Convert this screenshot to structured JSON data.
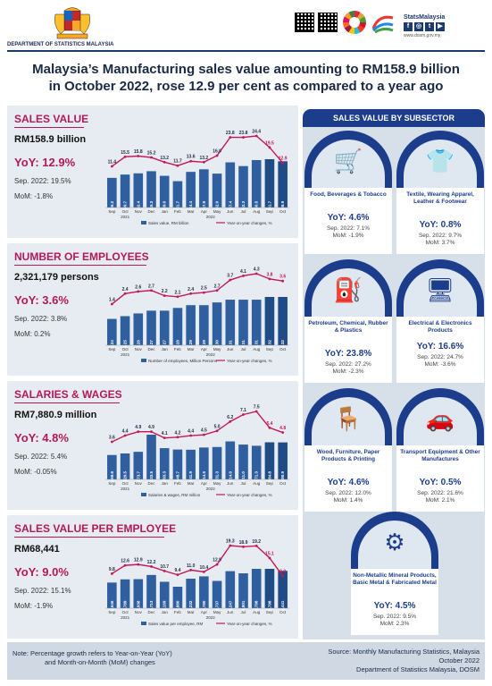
{
  "header": {
    "department": "DEPARTMENT OF STATISTICS MALAYSIA",
    "stats_brand": "StatsMalaysia",
    "stats_url": "www.dosm.gov.my"
  },
  "title": {
    "line1": "Malaysia’s Manufacturing sales value amounting to RM158.9 billion",
    "line2": "in October 2022, rose 12.9 per cent as compared to a year ago"
  },
  "colors": {
    "bar": "#2f5f9e",
    "line": "#c2185b",
    "accent": "#b3185a",
    "navy": "#1c3d8c"
  },
  "months": [
    "Sep",
    "Oct",
    "Nov",
    "Dec",
    "Jan",
    "Feb",
    "Mar",
    "Apr",
    "May",
    "Jun",
    "Jul",
    "Aug",
    "Sep",
    "Oct"
  ],
  "year_labels": [
    "2021",
    "2022"
  ],
  "panels": [
    {
      "title": "SALES VALUE",
      "value": "RM158.9 billion",
      "yoy": "YoY: 12.9%",
      "sep": "Sep. 2022: 19.5%",
      "mom": "MoM: -1.8%",
      "legend_bar": "Sales value, RM billion",
      "legend_line": "Year-on-year changes, %"
    },
    {
      "title": "NUMBER OF EMPLOYEES",
      "value": "2,321,179 persons",
      "yoy": "YoY: 3.6%",
      "sep": "Sep. 2022: 3.8%",
      "mom": "MoM: 0.2%",
      "legend_bar": "Number of employees, Million Persons",
      "legend_line": "Year-on-year changes, %"
    },
    {
      "title": "SALARIES & WAGES",
      "value": "RM7,880.9 million",
      "yoy": "YoY: 4.8%",
      "sep": "Sep. 2022: 5.4%",
      "mom": "MoM: -0.05%",
      "legend_bar": "Salaries & wages, RM million",
      "legend_line": "Year-on-year changes, %"
    },
    {
      "title": "SALES VALUE PER EMPLOYEE",
      "value": "RM68,441",
      "yoy": "YoY: 9.0%",
      "sep": "Sep. 2022: 15.1%",
      "mom": "MoM: -1.9%",
      "legend_bar": "Sales value per employee, RM",
      "legend_line": "Year-on-year changes, %"
    }
  ],
  "chart_data": [
    {
      "type": "bar",
      "title": "SALES VALUE",
      "categories": [
        "Sep",
        "Oct",
        "Nov",
        "Dec",
        "Jan",
        "Feb",
        "Mar",
        "Apr",
        "May",
        "Jun",
        "Jul",
        "Aug",
        "Sep",
        "Oct"
      ],
      "series": [
        {
          "name": "Sales value, RM billion",
          "type": "bar",
          "values": [
            136.2,
            140.7,
            142.4,
            145.3,
            139.0,
            131.7,
            144.4,
            147.9,
            142.0,
            157.4,
            152.3,
            160.5,
            161.7,
            158.9
          ]
        },
        {
          "name": "Year-on-year changes, %",
          "type": "line",
          "values": [
            11.4,
            15.5,
            15.8,
            15.2,
            13.2,
            11.7,
            13.6,
            13.2,
            16.0,
            23.8,
            23.8,
            24.4,
            19.5,
            12.9
          ]
        }
      ],
      "bar_labels": [
        "136.2",
        "140.7",
        "142.4",
        "145.3",
        "139.0",
        "131.7",
        "144.4",
        "147.9",
        "142.0",
        "157.4",
        "152.3",
        "160.5",
        "161.7",
        "158.9"
      ],
      "line_labels": [
        "11.4",
        "15.5",
        "15.8",
        "15.2",
        "13.2",
        "11.7",
        "13.6",
        "13.2",
        "16.0",
        "23.8",
        "23.8",
        "24.4",
        "19.5",
        "12.9"
      ]
    },
    {
      "type": "bar",
      "title": "NUMBER OF EMPLOYEES",
      "categories": [
        "Sep",
        "Oct",
        "Nov",
        "Dec",
        "Jan",
        "Feb",
        "Mar",
        "Apr",
        "May",
        "Jun",
        "Jul",
        "Aug",
        "Sep",
        "Oct"
      ],
      "series": [
        {
          "name": "Number of employees, Million Persons",
          "type": "bar",
          "values": [
            2.24,
            2.25,
            2.26,
            2.27,
            2.27,
            2.28,
            2.29,
            2.29,
            2.3,
            2.31,
            2.31,
            2.31,
            2.32,
            2.32
          ]
        },
        {
          "name": "Year-on-year changes, %",
          "type": "line",
          "values": [
            1.4,
            2.4,
            2.6,
            2.7,
            2.2,
            2.1,
            2.4,
            2.5,
            2.7,
            3.7,
            4.1,
            4.3,
            3.8,
            3.6
          ]
        }
      ],
      "bar_labels": [
        "2.24",
        "2.25",
        "2.26",
        "2.27",
        "2.27",
        "2.28",
        "2.29",
        "2.29",
        "2.30",
        "2.31",
        "2.31",
        "2.31",
        "2.32",
        "2.32"
      ],
      "line_labels": [
        "1.4",
        "2.4",
        "2.6",
        "2.7",
        "2.2",
        "2.1",
        "2.4",
        "2.5",
        "2.7",
        "3.7",
        "4.1",
        "4.3",
        "3.8",
        "3.6"
      ]
    },
    {
      "type": "bar",
      "title": "SALARIES & WAGES",
      "categories": [
        "Sep",
        "Oct",
        "Nov",
        "Dec",
        "Jan",
        "Feb",
        "Mar",
        "Apr",
        "May",
        "Jun",
        "Jul",
        "Aug",
        "Sep",
        "Oct"
      ],
      "series": [
        {
          "name": "Salaries & wages, RM million",
          "type": "bar",
          "values": [
            7469.8,
            7520.5,
            7573.7,
            8133.5,
            7693.3,
            7648.7,
            7641.9,
            7714.5,
            7731.3,
            7914.0,
            7811.0,
            7771.3,
            7884.8,
            7880.9
          ]
        },
        {
          "name": "Year-on-year changes, %",
          "type": "line",
          "values": [
            3.6,
            4.4,
            4.9,
            4.9,
            4.1,
            4.2,
            4.4,
            4.5,
            5.0,
            6.2,
            7.1,
            7.5,
            5.4,
            4.8
          ]
        }
      ],
      "bar_labels": [
        "7,469.8",
        "7,520.5",
        "7,573.7",
        "8,133.5",
        "7,693.3",
        "7,648.7",
        "7,641.9",
        "7,714.5",
        "7,731.3",
        "7,914.0",
        "7,811.0",
        "7,771.3",
        "7,884.8",
        "7,880.9"
      ],
      "line_labels": [
        "3.6",
        "4.4",
        "4.9",
        "4.9",
        "4.1",
        "4.2",
        "4.4",
        "4.5",
        "5.0",
        "6.2",
        "7.1",
        "7.5",
        "5.4",
        "4.8"
      ]
    },
    {
      "type": "bar",
      "title": "SALES VALUE PER EMPLOYEE",
      "categories": [
        "Sep",
        "Oct",
        "Nov",
        "Dec",
        "Jan",
        "Feb",
        "Mar",
        "Apr",
        "May",
        "Jun",
        "Jul",
        "Aug",
        "Sep",
        "Oct"
      ],
      "series": [
        {
          "name": "Sales value per employee, RM",
          "type": "bar",
          "values": [
            60646,
            62789,
            62938,
            65713,
            61169,
            57880,
            63232,
            64780,
            61737,
            68247,
            66801,
            69798,
            69798,
            68441
          ]
        },
        {
          "name": "Year-on-year changes, %",
          "type": "line",
          "values": [
            9.8,
            12.6,
            12.9,
            12.2,
            10.7,
            9.4,
            11.0,
            10.4,
            12.9,
            19.3,
            18.9,
            19.2,
            15.1,
            9.0
          ]
        }
      ],
      "bar_labels": [
        "60,646",
        "62,789",
        "62,938",
        "65,713",
        "61,169",
        "57,880",
        "63,232",
        "64,780",
        "61,737",
        "68,247",
        "66,801",
        "69,798",
        "69,798",
        "68,441"
      ],
      "line_labels": [
        "9.8",
        "12.6",
        "12.9",
        "12.2",
        "10.7",
        "9.4",
        "11.0",
        "10.4",
        "12.9",
        "19.3",
        "18.9",
        "19.2",
        "15.1",
        "9.0"
      ]
    }
  ],
  "subsector": {
    "header": "SALES VALUE BY SUBSECTOR",
    "cards": [
      {
        "name": "Food, Beverages & Tobacco",
        "yoy": "YoY: 4.6%",
        "sep": "Sep. 2022: 7.1%",
        "mom": "MoM: -1.9%",
        "icon": "shopping-cart-icon"
      },
      {
        "name": "Textile, Wearing Apparel, Leather & Footwear",
        "yoy": "YoY: 0.8%",
        "sep": "Sep. 2022: 9.7%",
        "mom": "MoM: 3.7%",
        "icon": "shirt-icon"
      },
      {
        "name": "Petroleum, Chemical, Rubber & Plastics",
        "yoy": "YoY: 23.8%",
        "sep": "Sep. 2022: 27.2%",
        "mom": "MoM: -2.3%",
        "icon": "fuel-pump-icon"
      },
      {
        "name": "Electrical & Electronics Products",
        "yoy": "YoY: 16.6%",
        "sep": "Sep. 2022: 24.7%",
        "mom": "MoM: -3.6%",
        "icon": "appliance-icon"
      },
      {
        "name": "Wood, Furniture, Paper Products & Printing",
        "yoy": "YoY: 4.6%",
        "sep": "Sep. 2022: 12.0%",
        "mom": "MoM: 1.4%",
        "icon": "furniture-icon"
      },
      {
        "name": "Transport Equipment & Other Manufactures",
        "yoy": "YoY: 0.5%",
        "sep": "Sep. 2022: 21.6%",
        "mom": "MoM: 2.1%",
        "icon": "car-icon"
      },
      {
        "name": "Non-Metallic Mineral Products, Basic Metal & Fabricated Metal",
        "yoy": "YoY: 4.5%",
        "sep": "Sep. 2022: 9.5%",
        "mom": "MoM: 2.3%",
        "icon": "metal-tools-icon"
      }
    ]
  },
  "footer": {
    "note_line1": "Note: Percentage growth refers to Year-on-Year (YoY)",
    "note_line2": "and Month-on-Month (MoM) changes",
    "source_line1": "Source: Monthly Manufacturing Statistics, Malaysia",
    "source_line2": "October 2022",
    "source_line3": "Department of Statistics Malaysia, DOSM"
  }
}
